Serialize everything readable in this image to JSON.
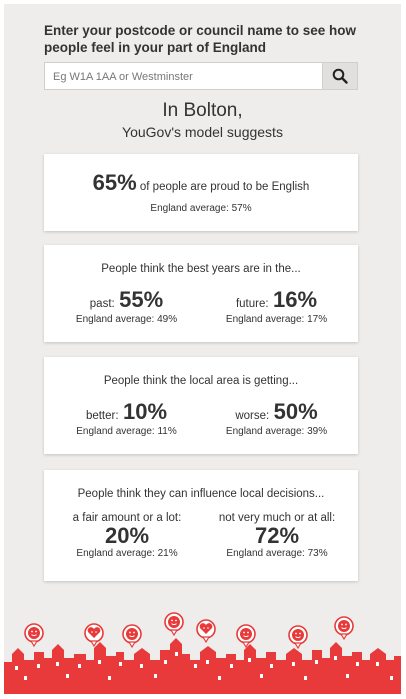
{
  "prompt": "Enter your postcode or council name to see how people feel in your part of England",
  "search": {
    "placeholder": "Eg W1A 1AA or Westminster",
    "button_icon": "search-icon"
  },
  "location_line": "In Bolton,",
  "model_line": "YouGov's model suggests",
  "cards": {
    "proud": {
      "value": "65%",
      "text": " of people are proud to be English",
      "avg": "England average: 57%"
    },
    "best_years": {
      "question": "People think the best years are in the...",
      "left": {
        "label": "past:",
        "value": "55%",
        "avg": "England average: 49%"
      },
      "right": {
        "label": "future:",
        "value": "16%",
        "avg": "England average: 17%"
      }
    },
    "local_area": {
      "question": "People think the local area is getting...",
      "left": {
        "label": "better:",
        "value": "10%",
        "avg": "England average: 11%"
      },
      "right": {
        "label": "worse:",
        "value": "50%",
        "avg": "England average: 39%"
      }
    },
    "influence": {
      "question": "People think they can influence local decisions...",
      "left": {
        "label": "a fair amount or a lot:",
        "value": "20%",
        "avg": "England average: 21%"
      },
      "right": {
        "label": "not very much or at all:",
        "value": "72%",
        "avg": "England average: 73%"
      }
    }
  },
  "colors": {
    "accent_red": "#e83a3a",
    "background": "#efedeb"
  }
}
